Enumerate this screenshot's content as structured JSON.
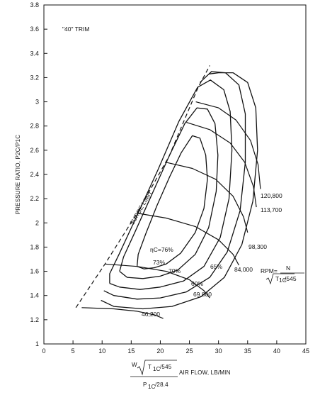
{
  "chart_data": {
    "type": "line",
    "title": "",
    "trim_label": "\"40\" TRIM",
    "ylabel": "PRESSURE RATIO, P2C/P1C",
    "xlabel": {
      "numerator_prefix": "W",
      "numerator_term": "T",
      "numerator_sub": "1C",
      "numerator_div": "/545",
      "suffix": "AIR FLOW, LB/MIN",
      "denominator_term": "P",
      "denominator_sub": "1C",
      "denominator_div": "/28.4"
    },
    "xlim": [
      0,
      45
    ],
    "ylim": [
      1,
      3.8
    ],
    "xticks": [
      0,
      5,
      10,
      15,
      20,
      25,
      30,
      35,
      40,
      45
    ],
    "yticks": [
      1,
      1.2,
      1.4,
      1.6,
      1.8,
      2,
      2.2,
      2.4,
      2.6,
      2.8,
      3,
      3.2,
      3.4,
      3.6,
      3.8
    ],
    "x_tick_labels": [
      "0",
      "5",
      "10",
      "15",
      "20",
      "25",
      "30",
      "35",
      "40",
      "45"
    ],
    "y_tick_labels": [
      "1",
      "1.2",
      "1.4",
      "1.6",
      "1.8",
      "2",
      "2.2",
      "2.4",
      "2.6",
      "2.8",
      "3",
      "3.2",
      "3.4",
      "3.6",
      "3.8"
    ],
    "grid": false,
    "surge_line": {
      "label": "SURGE LIMIT",
      "points": [
        [
          5.5,
          1.3
        ],
        [
          10.5,
          1.66
        ],
        [
          16,
          2.08
        ],
        [
          21.5,
          2.55
        ],
        [
          26.5,
          3.12
        ],
        [
          28.5,
          3.3
        ]
      ]
    },
    "efficiency_islands": [
      {
        "label": "ηC=76%",
        "points": [
          [
            16,
            1.64
          ],
          [
            17.2,
            1.62
          ],
          [
            19,
            1.63
          ],
          [
            21,
            1.66
          ],
          [
            23.5,
            1.75
          ],
          [
            26,
            1.92
          ],
          [
            27.5,
            2.12
          ],
          [
            28.1,
            2.36
          ],
          [
            27.8,
            2.56
          ],
          [
            26.8,
            2.7
          ],
          [
            25.5,
            2.72
          ],
          [
            23.6,
            2.58
          ],
          [
            21.6,
            2.38
          ],
          [
            19.4,
            2.14
          ],
          [
            17.5,
            1.91
          ],
          [
            16.2,
            1.74
          ],
          [
            16,
            1.64
          ]
        ]
      },
      {
        "label": "73%",
        "points": [
          [
            13,
            1.6
          ],
          [
            14.3,
            1.55
          ],
          [
            17,
            1.54
          ],
          [
            20,
            1.56
          ],
          [
            23,
            1.61
          ],
          [
            26,
            1.74
          ],
          [
            28.3,
            1.96
          ],
          [
            29.6,
            2.26
          ],
          [
            29.9,
            2.56
          ],
          [
            29.4,
            2.82
          ],
          [
            28.1,
            2.94
          ],
          [
            26.3,
            2.95
          ],
          [
            24.2,
            2.82
          ],
          [
            21.4,
            2.54
          ],
          [
            18.6,
            2.24
          ],
          [
            15.7,
            1.93
          ],
          [
            13.7,
            1.72
          ],
          [
            13,
            1.6
          ]
        ]
      },
      {
        "label": "70%",
        "points": [
          [
            11.3,
            1.5
          ],
          [
            13,
            1.47
          ],
          [
            16.5,
            1.45
          ],
          [
            20,
            1.47
          ],
          [
            24,
            1.52
          ],
          [
            27.5,
            1.64
          ],
          [
            30.3,
            1.88
          ],
          [
            31.8,
            2.2
          ],
          [
            32.3,
            2.6
          ],
          [
            32,
            2.92
          ],
          [
            30.9,
            3.1
          ],
          [
            28.6,
            3.18
          ],
          [
            26.4,
            3.12
          ],
          [
            23.2,
            2.84
          ],
          [
            19.6,
            2.44
          ],
          [
            15.8,
            2.04
          ],
          [
            12.9,
            1.74
          ],
          [
            11.3,
            1.58
          ],
          [
            11.3,
            1.5
          ]
        ]
      },
      {
        "label": "65%",
        "points": [
          [
            10.3,
            1.44
          ],
          [
            12,
            1.4
          ],
          [
            16,
            1.37
          ],
          [
            20,
            1.38
          ],
          [
            24.5,
            1.43
          ],
          [
            28.5,
            1.55
          ],
          [
            31.5,
            1.76
          ],
          [
            33.7,
            2.1
          ],
          [
            34.6,
            2.5
          ],
          [
            34.6,
            2.9
          ],
          [
            33.5,
            3.14
          ],
          [
            31.2,
            3.24
          ],
          [
            28.8,
            3.25
          ],
          [
            26.8,
            3.16
          ]
        ]
      },
      {
        "label": "60%",
        "points": [
          [
            9.8,
            1.36
          ],
          [
            12,
            1.31
          ],
          [
            17,
            1.29
          ],
          [
            22,
            1.31
          ],
          [
            27,
            1.39
          ],
          [
            31,
            1.55
          ],
          [
            34,
            1.82
          ],
          [
            35.9,
            2.18
          ],
          [
            36.7,
            2.6
          ],
          [
            36.4,
            2.95
          ],
          [
            35,
            3.16
          ],
          [
            32.5,
            3.24
          ],
          [
            30,
            3.24
          ],
          [
            28.4,
            3.23
          ]
        ]
      }
    ],
    "speed_lines": [
      {
        "label": "46,200",
        "points": [
          [
            6.5,
            1.3
          ],
          [
            12,
            1.29
          ],
          [
            16,
            1.27
          ],
          [
            19,
            1.24
          ],
          [
            20.5,
            1.21
          ]
        ]
      },
      {
        "label": "69,800",
        "points": [
          [
            10.5,
            1.66
          ],
          [
            16,
            1.64
          ],
          [
            21,
            1.6
          ],
          [
            25,
            1.53
          ],
          [
            27.5,
            1.44
          ],
          [
            28.5,
            1.38
          ]
        ]
      },
      {
        "label": "84,000",
        "points": [
          [
            16,
            2.08
          ],
          [
            21,
            2.04
          ],
          [
            26,
            1.97
          ],
          [
            30,
            1.86
          ],
          [
            32.5,
            1.74
          ],
          [
            33.5,
            1.65
          ]
        ]
      },
      {
        "label": "98,300",
        "points": [
          [
            21,
            2.5
          ],
          [
            25.5,
            2.45
          ],
          [
            29.5,
            2.36
          ],
          [
            32.5,
            2.22
          ],
          [
            34.3,
            2.05
          ],
          [
            35,
            1.92
          ]
        ]
      },
      {
        "label": "113,700",
        "points": [
          [
            24.5,
            2.83
          ],
          [
            28.5,
            2.77
          ],
          [
            32,
            2.66
          ],
          [
            34.5,
            2.5
          ],
          [
            36,
            2.3
          ],
          [
            36.5,
            2.13
          ]
        ]
      },
      {
        "label": "120,800",
        "points": [
          [
            26.1,
            3.0
          ],
          [
            30,
            2.95
          ],
          [
            33,
            2.85
          ],
          [
            35.5,
            2.68
          ],
          [
            36.8,
            2.48
          ],
          [
            37.2,
            2.28
          ]
        ]
      }
    ],
    "rpm_label": {
      "prefix": "RPM=",
      "numerator": "N",
      "denominator_term": "T",
      "denominator_sub": "1C",
      "denominator_div": "/545"
    }
  }
}
